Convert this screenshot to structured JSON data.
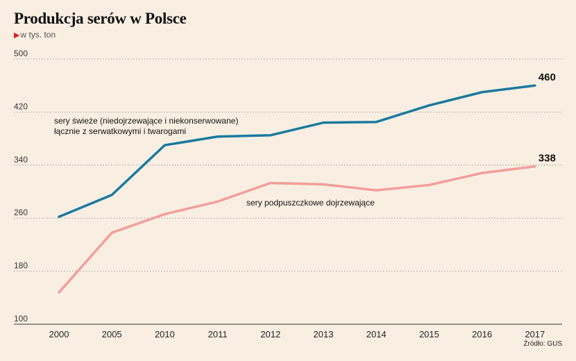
{
  "chart_data": {
    "type": "line",
    "title": "Produkcja serów w Polsce",
    "subtitle": "w tys. ton",
    "source": "Źródło: GUS",
    "categories": [
      "2000",
      "2005",
      "2010",
      "2011",
      "2012",
      "2013",
      "2014",
      "2015",
      "2016",
      "2017"
    ],
    "ylim": [
      100,
      500
    ],
    "yticks": [
      100,
      180,
      260,
      340,
      420,
      500
    ],
    "grid": "horizontal-dotted",
    "series": [
      {
        "name": "sery świeże (niedojrzewające i niekonserwowane) łącznie z serwatkowymi i twarogami",
        "label_lines": [
          "sery świeże (niedojrzewające i niekonserwowane)",
          "łącznie z serwatkowymi i twarogami"
        ],
        "color": "#1a79a0",
        "values": [
          262,
          295,
          370,
          383,
          385,
          404,
          405,
          430,
          450,
          460
        ],
        "end_label": "460"
      },
      {
        "name": "sery podpuszczkowe dojrzewające",
        "label_lines": [
          "sery podpuszczkowe dojrzewające"
        ],
        "color": "#f29e9a",
        "values": [
          148,
          238,
          266,
          285,
          313,
          311,
          302,
          310,
          328,
          338
        ],
        "end_label": "338"
      }
    ]
  }
}
